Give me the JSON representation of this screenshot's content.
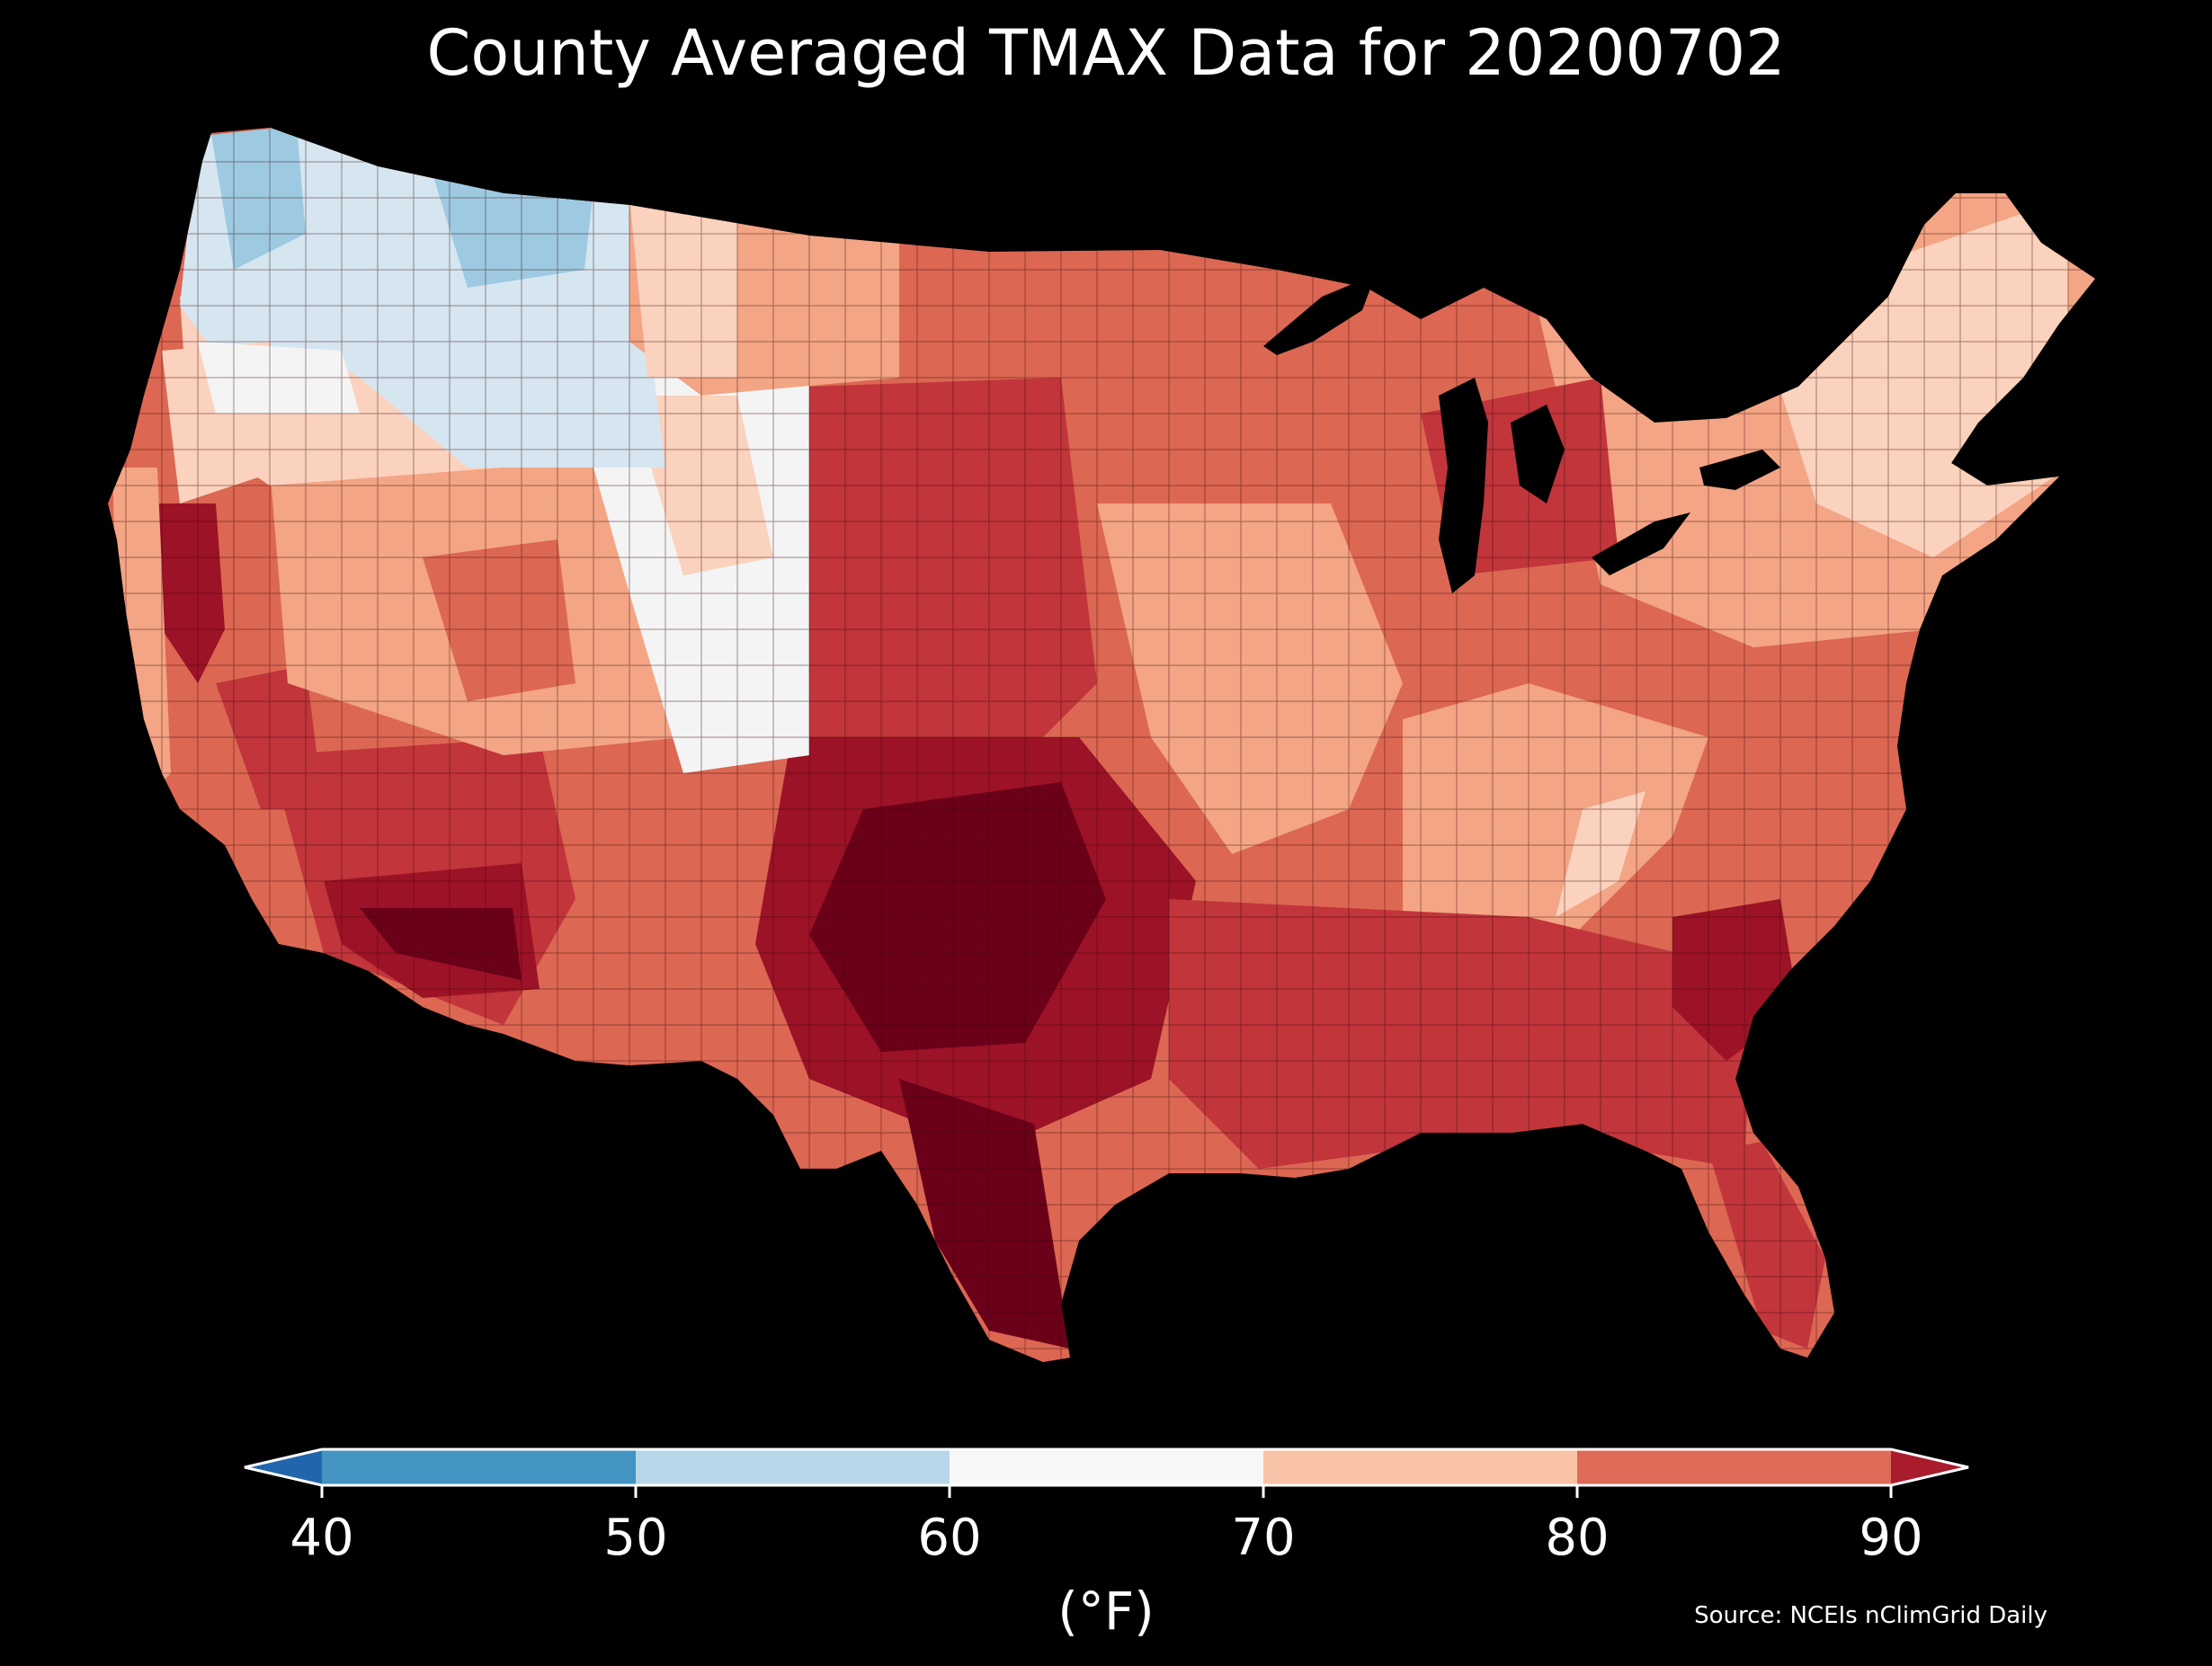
{
  "title": "County Averaged TMAX Data for 20200702",
  "legend": {
    "ticks": [
      "40",
      "50",
      "60",
      "70",
      "80",
      "90"
    ],
    "unit": "(°F)",
    "min": 40,
    "max": 90,
    "extend": "both",
    "bins": [
      {
        "from": 40,
        "to": 50,
        "color": "#4393c3"
      },
      {
        "from": 50,
        "to": 60,
        "color": "#b7d7e8"
      },
      {
        "from": 60,
        "to": 70,
        "color": "#f7f7f7"
      },
      {
        "from": 70,
        "to": 80,
        "color": "#f8c3a6"
      },
      {
        "from": 80,
        "to": 90,
        "color": "#de6b58"
      }
    ],
    "under_color": "#2166ac",
    "over_color": "#a81c2e"
  },
  "source": "Source: NCEIs nClimGrid Daily",
  "map": {
    "region": "contiguous United States, county level",
    "colors": {
      "cool": "#d6e6f1",
      "cooler": "#9ecae1",
      "neutral": "#f4f4f4",
      "light": "#fbd2bd",
      "warm": "#f3a585",
      "hot": "#dc6753",
      "hotter": "#c1353b",
      "hottest": "#9c1226",
      "extreme": "#6b0019"
    }
  }
}
